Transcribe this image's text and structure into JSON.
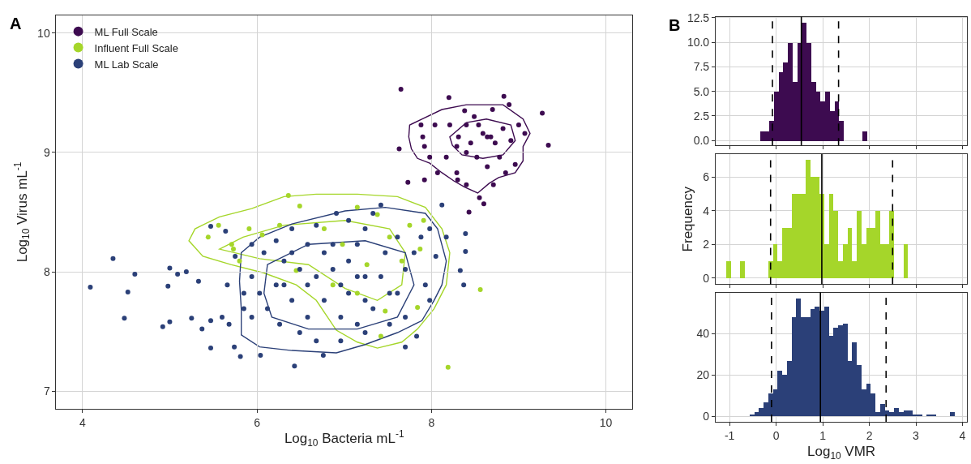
{
  "chart_data": [
    {
      "type": "scatter",
      "title": "A",
      "xlabel": "Log$_{10}$ Bacteria mL$^{-1}$",
      "ylabel": "Log$_{10}$ Virus mL$^{-1}$",
      "xlim": [
        3.7,
        10.3
      ],
      "ylim": [
        6.85,
        10.15
      ],
      "xticks": [
        4,
        6,
        8,
        10
      ],
      "yticks": [
        7,
        8,
        9,
        10
      ],
      "grid": true,
      "legend": "top left",
      "series": [
        {
          "name": "ML Full Scale",
          "marker": "circle",
          "color": "#3d0b50",
          "x": [
            7.65,
            8.2,
            8.83,
            8.89,
            9.27,
            9.34,
            7.63,
            7.73,
            7.92,
            8.43,
            8.55,
            8.6,
            8.71,
            8.4,
            8.3,
            7.88,
            7.9,
            7.92,
            7.98,
            8.04,
            8.21,
            8.31,
            8.4,
            8.49,
            8.59,
            8.64,
            8.68,
            8.82,
            8.91,
            9.0,
            9.07,
            8.96,
            8.85,
            8.78,
            8.64,
            8.52,
            8.4,
            8.29,
            8.17,
            8.07,
            8.38,
            8.7,
            8.54,
            8.73,
            8.45,
            8.29
          ],
          "values": [
            9.53,
            9.46,
            9.47,
            9.4,
            9.33,
            9.06,
            9.03,
            8.75,
            8.77,
            8.5,
            8.62,
            8.57,
            8.73,
            8.73,
            8.77,
            9.23,
            9.13,
            9.05,
            8.96,
            9.23,
            9.23,
            9.13,
            9.23,
            9.3,
            9.16,
            9.13,
            9.13,
            9.2,
            9.1,
            9.23,
            9.16,
            8.9,
            8.83,
            8.96,
            8.88,
            8.96,
            9.0,
            9.05,
            8.96,
            8.83,
            9.35,
            9.36,
            9.23,
            9.08,
            9.08,
            8.83
          ]
        },
        {
          "name": "Influent Full Scale",
          "marker": "circle",
          "color": "#a5d62a",
          "x": [
            6.36,
            6.49,
            5.44,
            5.56,
            5.71,
            5.73,
            5.91,
            6.26,
            6.06,
            7.15,
            7.38,
            7.52,
            7.75,
            7.91,
            7.87,
            8.56,
            8.19,
            7.84,
            7.42,
            7.47,
            7.15,
            6.45,
            6.87,
            7.26,
            6.98,
            6.77,
            5.8,
            7.66
          ],
          "values": [
            8.64,
            8.55,
            8.29,
            8.39,
            8.23,
            8.19,
            8.36,
            8.39,
            8.31,
            8.54,
            8.48,
            8.29,
            8.39,
            8.43,
            8.19,
            7.85,
            7.2,
            7.7,
            7.46,
            7.67,
            7.82,
            8.01,
            7.89,
            8.06,
            8.23,
            8.36,
            8.09,
            8.09
          ]
        },
        {
          "name": "ML Lab Scale",
          "marker": "circle",
          "color": "#2b4078",
          "x": [
            4.09,
            4.35,
            4.52,
            4.6,
            4.48,
            4.92,
            5.0,
            5.0,
            4.98,
            5.09,
            5.19,
            5.25,
            5.33,
            5.37,
            5.47,
            5.47,
            5.6,
            5.68,
            5.81,
            5.74,
            6.04,
            6.43,
            6.76,
            7.7,
            7.83,
            8.12,
            8.39,
            8.39,
            8.33,
            8.37,
            8.17,
            8.05,
            5.47,
            5.64,
            5.94,
            6.08,
            6.22,
            6.31,
            5.94,
            6.03,
            6.12,
            5.94,
            6.26,
            6.31,
            6.4,
            6.49,
            6.58,
            6.68,
            6.77,
            6.87,
            6.96,
            7.05,
            7.15,
            7.24,
            7.33,
            7.42,
            7.47,
            7.61,
            7.7,
            7.8,
            7.93,
            7.98,
            7.61,
            7.33,
            7.15,
            6.96,
            6.77,
            6.58,
            6.49,
            6.68,
            6.96,
            7.24,
            7.52,
            7.7,
            7.05,
            7.24,
            6.68,
            6.4,
            6.91,
            7.05,
            7.15,
            7.42,
            7.52,
            6.22,
            6.4,
            6.58,
            6.87,
            7.24,
            5.85,
            5.85,
            5.66,
            5.75,
            7.88,
            7.98
          ],
          "values": [
            7.87,
            8.11,
            7.83,
            7.98,
            7.61,
            7.54,
            8.03,
            7.58,
            7.88,
            7.98,
            8.0,
            7.61,
            7.92,
            7.52,
            7.59,
            7.36,
            7.62,
            7.56,
            7.29,
            7.37,
            7.3,
            7.21,
            7.3,
            7.37,
            7.46,
            8.56,
            8.32,
            8.17,
            8.01,
            7.89,
            8.29,
            8.13,
            8.38,
            8.34,
            8.23,
            8.16,
            8.26,
            8.09,
            7.96,
            7.82,
            7.69,
            7.62,
            7.56,
            7.89,
            7.76,
            8.02,
            8.23,
            8.39,
            8.16,
            8.02,
            7.89,
            8.09,
            8.23,
            8.36,
            8.49,
            8.56,
            8.16,
            8.29,
            8.02,
            8.16,
            7.89,
            7.76,
            7.82,
            7.69,
            7.56,
            7.62,
            7.76,
            7.62,
            7.49,
            7.42,
            7.42,
            7.49,
            7.56,
            7.62,
            7.82,
            7.96,
            7.96,
            8.36,
            8.49,
            8.43,
            7.96,
            7.96,
            7.82,
            7.89,
            8.16,
            7.89,
            8.23,
            7.76,
            7.82,
            7.69,
            7.89,
            8.13,
            8.29,
            8.36
          ]
        }
      ]
    },
    {
      "type": "histogram",
      "title": "B",
      "color": "#3d0b50",
      "xlim": [
        -1.3,
        4.1
      ],
      "ylim": [
        -0.5,
        12.6
      ],
      "yticks": [
        {
          "value": 0,
          "label": "0.0"
        },
        2.5,
        {
          "value": 5,
          "label": "5.0"
        },
        7.5,
        {
          "value": 10,
          "label": "10.0"
        },
        12.5
      ],
      "xticks": [
        -1,
        0,
        1,
        2,
        3,
        4
      ],
      "tick_labels": "y",
      "grid": true,
      "bins": [
        -0.35,
        -0.25,
        -0.15,
        -0.05,
        0.05,
        0.15,
        0.25,
        0.35,
        0.45,
        0.55,
        0.65,
        0.75,
        0.85,
        0.95,
        1.05,
        1.15,
        1.25,
        1.35,
        1.45,
        1.55,
        1.65,
        1.75,
        1.85,
        1.95
      ],
      "values": [
        1,
        1,
        2,
        5,
        7,
        8,
        10,
        6,
        10,
        12,
        10,
        6,
        5,
        4,
        5,
        3,
        4,
        2,
        0,
        0,
        0,
        0,
        1
      ],
      "ref_lines": [
        {
          "axis": "x",
          "value": -0.08,
          "line_style": "dashed",
          "color": "#000000"
        },
        {
          "axis": "x",
          "value": 0.54,
          "line_style": "solid",
          "color": "#000000"
        },
        {
          "axis": "x",
          "value": 1.34,
          "line_style": "dashed",
          "color": "#000000"
        }
      ]
    },
    {
      "type": "histogram",
      "ylabel": "Frequency",
      "color": "#a5d62a",
      "xlim": [
        -1.3,
        4.1
      ],
      "ylim": [
        -0.36,
        7.35
      ],
      "yticks": [
        0,
        2,
        4,
        6
      ],
      "xticks": [
        -1,
        0,
        1,
        2,
        3,
        4
      ],
      "tick_labels": "y",
      "grid": true,
      "bins": [
        -1.07,
        -0.97,
        -0.87,
        -0.77,
        -0.67,
        -0.57,
        -0.47,
        -0.37,
        -0.27,
        -0.17,
        -0.07,
        0.03,
        0.13,
        0.23,
        0.33,
        0.43,
        0.53,
        0.63,
        0.73,
        0.83,
        0.93,
        1.03,
        1.13,
        1.23,
        1.33,
        1.43,
        1.53,
        1.63,
        1.73,
        1.83,
        1.93,
        2.03,
        2.13,
        2.23,
        2.33,
        2.43,
        2.53,
        2.63,
        2.73,
        2.83
      ],
      "values": [
        1,
        0,
        0,
        1,
        0,
        0,
        0,
        0,
        0,
        1,
        2,
        1,
        3,
        3,
        5,
        5,
        5,
        7,
        6,
        6,
        5,
        2,
        5,
        4,
        1,
        2,
        3,
        1,
        4,
        2,
        3,
        3,
        4,
        2,
        2,
        4,
        0,
        0,
        2
      ],
      "ref_lines": [
        {
          "axis": "x",
          "value": -0.12,
          "line_style": "dashed",
          "color": "#000000"
        },
        {
          "axis": "x",
          "value": 0.98,
          "line_style": "solid",
          "color": "#000000"
        },
        {
          "axis": "x",
          "value": 2.5,
          "line_style": "dashed",
          "color": "#000000"
        }
      ]
    },
    {
      "type": "histogram",
      "xlabel": "Log$_{10}$ VMR",
      "color": "#2b4078",
      "xlim": [
        -1.3,
        4.1
      ],
      "ylim": [
        -2.7,
        59.8
      ],
      "yticks": [
        0,
        20,
        40
      ],
      "xticks": [
        -1,
        0,
        1,
        2,
        3,
        4
      ],
      "grid": true,
      "bins": [
        -0.57,
        -0.47,
        -0.37,
        -0.27,
        -0.17,
        -0.07,
        0.03,
        0.13,
        0.23,
        0.33,
        0.43,
        0.53,
        0.63,
        0.73,
        0.83,
        0.93,
        1.03,
        1.13,
        1.23,
        1.33,
        1.43,
        1.53,
        1.63,
        1.73,
        1.83,
        1.93,
        2.03,
        2.13,
        2.23,
        2.33,
        2.43,
        2.53,
        2.63,
        2.73,
        2.83,
        2.93,
        3.03,
        3.13,
        3.23,
        3.33,
        3.43,
        3.53,
        3.63,
        3.73,
        3.83
      ],
      "values": [
        1,
        2,
        4,
        7,
        11,
        13,
        22,
        20,
        27,
        48,
        57,
        48,
        48,
        52,
        53,
        51,
        53,
        39,
        43,
        44,
        45,
        27,
        36,
        25,
        13,
        16,
        11,
        2,
        6,
        3,
        2,
        4,
        2,
        3,
        3,
        1,
        1,
        0,
        1,
        1,
        0,
        0,
        0,
        2
      ],
      "ref_lines": [
        {
          "axis": "x",
          "value": -0.1,
          "line_style": "dashed",
          "color": "#000000"
        },
        {
          "axis": "x",
          "value": 0.95,
          "line_style": "solid",
          "color": "#000000"
        },
        {
          "axis": "x",
          "value": 2.36,
          "line_style": "dashed",
          "color": "#000000"
        }
      ]
    }
  ]
}
